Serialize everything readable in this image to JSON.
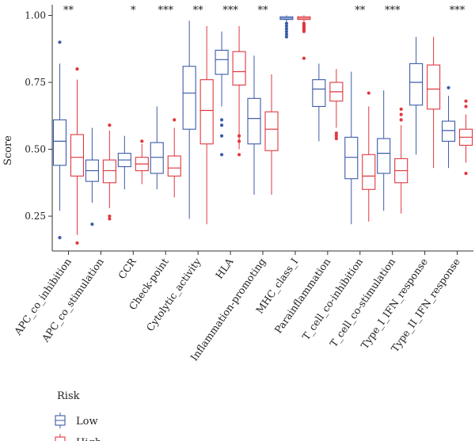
{
  "chart_data": {
    "type": "boxplot",
    "ylabel": "Score",
    "ylim": [
      0.12,
      1.04
    ],
    "yticks": [
      0.25,
      0.5,
      0.75,
      1.0
    ],
    "ytick_labels": [
      "0.25",
      "0.50",
      "0.75",
      "1.00"
    ],
    "grid": false,
    "legend": {
      "title": "Risk",
      "position": "bottom-left",
      "entries": [
        {
          "label": "Low",
          "color": "#3b5ba8"
        },
        {
          "label": "High",
          "color": "#e0373f"
        }
      ]
    },
    "categories": [
      "APC_co_inhibition",
      "APC_co_stimulation",
      "CCR",
      "Check-point",
      "Cytolytic_activity",
      "HLA",
      "Inflammation-promoting",
      "MHC_class_I",
      "Parainflammation",
      "T_cell_co-inhibition",
      "T_cell_co-stimulation",
      "Type_I_IFN_response",
      "Type_II_IFN_response"
    ],
    "significance": [
      "**",
      "",
      "*",
      "***",
      "**",
      "***",
      "**",
      "",
      "",
      "**",
      "***",
      "",
      "***"
    ],
    "series": [
      {
        "name": "Low",
        "color": "#3b5ba8",
        "boxes": [
          {
            "whislo": 0.27,
            "q1": 0.44,
            "med": 0.53,
            "q3": 0.61,
            "whishi": 0.82,
            "fliers": [
              0.9,
              0.17
            ]
          },
          {
            "whislo": 0.3,
            "q1": 0.38,
            "med": 0.42,
            "q3": 0.46,
            "whishi": 0.58,
            "fliers": [
              0.22
            ]
          },
          {
            "whislo": 0.35,
            "q1": 0.435,
            "med": 0.46,
            "q3": 0.485,
            "whishi": 0.55,
            "fliers": []
          },
          {
            "whislo": 0.35,
            "q1": 0.41,
            "med": 0.47,
            "q3": 0.525,
            "whishi": 0.66,
            "fliers": []
          },
          {
            "whislo": 0.24,
            "q1": 0.575,
            "med": 0.71,
            "q3": 0.81,
            "whishi": 0.98,
            "fliers": []
          },
          {
            "whislo": 0.66,
            "q1": 0.78,
            "med": 0.835,
            "q3": 0.87,
            "whishi": 0.94,
            "fliers": [
              0.61,
              0.59,
              0.55,
              0.48
            ]
          },
          {
            "whislo": 0.33,
            "q1": 0.52,
            "med": 0.615,
            "q3": 0.69,
            "whishi": 0.85,
            "fliers": []
          },
          {
            "whislo": 0.975,
            "q1": 0.985,
            "med": 0.99,
            "q3": 0.995,
            "whishi": 1.0,
            "fliers": [
              0.97,
              0.96,
              0.95,
              0.94,
              0.93,
              0.92
            ]
          },
          {
            "whislo": 0.53,
            "q1": 0.66,
            "med": 0.725,
            "q3": 0.76,
            "whishi": 0.82,
            "fliers": []
          },
          {
            "whislo": 0.22,
            "q1": 0.39,
            "med": 0.47,
            "q3": 0.545,
            "whishi": 0.79,
            "fliers": []
          },
          {
            "whislo": 0.27,
            "q1": 0.41,
            "med": 0.485,
            "q3": 0.54,
            "whishi": 0.72,
            "fliers": []
          },
          {
            "whislo": 0.48,
            "q1": 0.665,
            "med": 0.75,
            "q3": 0.82,
            "whishi": 0.92,
            "fliers": []
          },
          {
            "whislo": 0.43,
            "q1": 0.53,
            "med": 0.57,
            "q3": 0.605,
            "whishi": 0.7,
            "fliers": [
              0.73
            ]
          }
        ]
      },
      {
        "name": "High",
        "color": "#e0373f",
        "boxes": [
          {
            "whislo": 0.18,
            "q1": 0.4,
            "med": 0.47,
            "q3": 0.555,
            "whishi": 0.76,
            "fliers": [
              0.8,
              0.15
            ]
          },
          {
            "whislo": 0.28,
            "q1": 0.375,
            "med": 0.42,
            "q3": 0.46,
            "whishi": 0.57,
            "fliers": [
              0.59,
              0.25,
              0.24
            ]
          },
          {
            "whislo": 0.37,
            "q1": 0.42,
            "med": 0.445,
            "q3": 0.47,
            "whishi": 0.52,
            "fliers": [
              0.53
            ]
          },
          {
            "whislo": 0.32,
            "q1": 0.4,
            "med": 0.43,
            "q3": 0.475,
            "whishi": 0.58,
            "fliers": [
              0.61
            ]
          },
          {
            "whislo": 0.22,
            "q1": 0.52,
            "med": 0.645,
            "q3": 0.76,
            "whishi": 0.96,
            "fliers": []
          },
          {
            "whislo": 0.5,
            "q1": 0.74,
            "med": 0.79,
            "q3": 0.865,
            "whishi": 0.96,
            "fliers": [
              0.55,
              0.53,
              0.48
            ]
          },
          {
            "whislo": 0.33,
            "q1": 0.495,
            "med": 0.575,
            "q3": 0.64,
            "whishi": 0.78,
            "fliers": []
          },
          {
            "whislo": 0.975,
            "q1": 0.985,
            "med": 0.99,
            "q3": 0.995,
            "whishi": 1.0,
            "fliers": [
              0.97,
              0.965,
              0.96,
              0.955,
              0.95,
              0.945,
              0.94,
              0.84
            ]
          },
          {
            "whislo": 0.58,
            "q1": 0.68,
            "med": 0.715,
            "q3": 0.75,
            "whishi": 0.8,
            "fliers": [
              0.56,
              0.55,
              0.54
            ]
          },
          {
            "whislo": 0.23,
            "q1": 0.35,
            "med": 0.4,
            "q3": 0.48,
            "whishi": 0.66,
            "fliers": [
              0.71
            ]
          },
          {
            "whislo": 0.26,
            "q1": 0.375,
            "med": 0.42,
            "q3": 0.465,
            "whishi": 0.59,
            "fliers": [
              0.65,
              0.63,
              0.61
            ]
          },
          {
            "whislo": 0.43,
            "q1": 0.65,
            "med": 0.725,
            "q3": 0.815,
            "whishi": 0.92,
            "fliers": []
          },
          {
            "whislo": 0.45,
            "q1": 0.515,
            "med": 0.545,
            "q3": 0.575,
            "whishi": 0.63,
            "fliers": [
              0.68,
              0.66,
              0.41
            ]
          }
        ]
      }
    ]
  }
}
